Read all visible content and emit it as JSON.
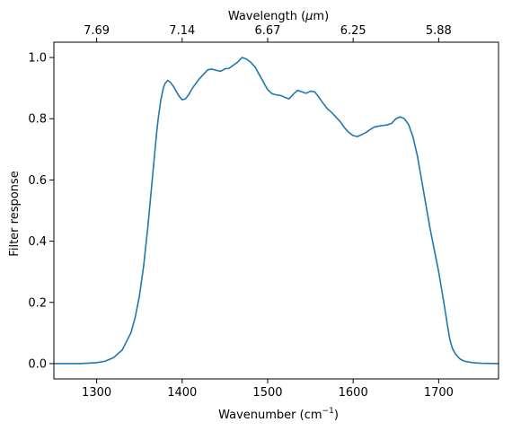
{
  "chart_data": {
    "type": "line",
    "xlabel": "Wavenumber (cm",
    "xlabel_sup": "−1",
    "xlabel_suffix": ")",
    "ylabel": "Filter response",
    "top_axis_label": "Wavelength (",
    "top_axis_label_mu": "μ",
    "top_axis_label_suffix": "m)",
    "xlim": [
      1250,
      1770
    ],
    "ylim": [
      -0.05,
      1.05
    ],
    "x_ticks": [
      1300,
      1400,
      1500,
      1600,
      1700
    ],
    "x_tick_labels": [
      "1300",
      "1400",
      "1500",
      "1600",
      "1700"
    ],
    "y_ticks": [
      0.0,
      0.2,
      0.4,
      0.6,
      0.8,
      1.0
    ],
    "y_tick_labels": [
      "0.0",
      "0.2",
      "0.4",
      "0.6",
      "0.8",
      "1.0"
    ],
    "top_ticks_wavenumber": [
      1300,
      1400,
      1500,
      1600,
      1700
    ],
    "top_tick_labels": [
      "7.69",
      "7.14",
      "6.67",
      "6.25",
      "5.88"
    ],
    "line_color": "#1f77b4",
    "grid": false,
    "series": [
      {
        "x": [
          1250,
          1280,
          1300,
          1310,
          1320,
          1330,
          1340,
          1345,
          1350,
          1355,
          1360,
          1365,
          1370,
          1372,
          1375,
          1378,
          1380,
          1383,
          1386,
          1390,
          1393,
          1396,
          1400,
          1404,
          1408,
          1412,
          1416,
          1420,
          1425,
          1430,
          1435,
          1440,
          1445,
          1450,
          1455,
          1460,
          1465,
          1470,
          1475,
          1480,
          1485,
          1490,
          1495,
          1500,
          1505,
          1510,
          1515,
          1520,
          1525,
          1530,
          1535,
          1540,
          1545,
          1550,
          1555,
          1560,
          1565,
          1570,
          1575,
          1580,
          1585,
          1590,
          1595,
          1600,
          1605,
          1610,
          1615,
          1620,
          1625,
          1630,
          1635,
          1640,
          1645,
          1650,
          1655,
          1660,
          1665,
          1670,
          1675,
          1680,
          1685,
          1690,
          1695,
          1700,
          1703,
          1706,
          1710,
          1713,
          1716,
          1720,
          1725,
          1730,
          1740,
          1750,
          1770
        ],
        "y": [
          0.0,
          0.0,
          0.003,
          0.008,
          0.02,
          0.045,
          0.1,
          0.15,
          0.22,
          0.32,
          0.45,
          0.6,
          0.75,
          0.8,
          0.86,
          0.9,
          0.915,
          0.925,
          0.92,
          0.905,
          0.89,
          0.875,
          0.862,
          0.865,
          0.88,
          0.9,
          0.915,
          0.93,
          0.945,
          0.96,
          0.962,
          0.958,
          0.955,
          0.963,
          0.965,
          0.975,
          0.985,
          1.0,
          0.995,
          0.985,
          0.97,
          0.945,
          0.92,
          0.895,
          0.882,
          0.878,
          0.876,
          0.87,
          0.865,
          0.88,
          0.893,
          0.888,
          0.883,
          0.89,
          0.888,
          0.87,
          0.85,
          0.832,
          0.82,
          0.805,
          0.79,
          0.77,
          0.755,
          0.745,
          0.742,
          0.748,
          0.755,
          0.765,
          0.773,
          0.776,
          0.778,
          0.78,
          0.785,
          0.8,
          0.806,
          0.8,
          0.78,
          0.74,
          0.68,
          0.6,
          0.52,
          0.44,
          0.37,
          0.3,
          0.25,
          0.2,
          0.13,
          0.08,
          0.05,
          0.03,
          0.015,
          0.008,
          0.003,
          0.001,
          0.0
        ]
      }
    ]
  }
}
